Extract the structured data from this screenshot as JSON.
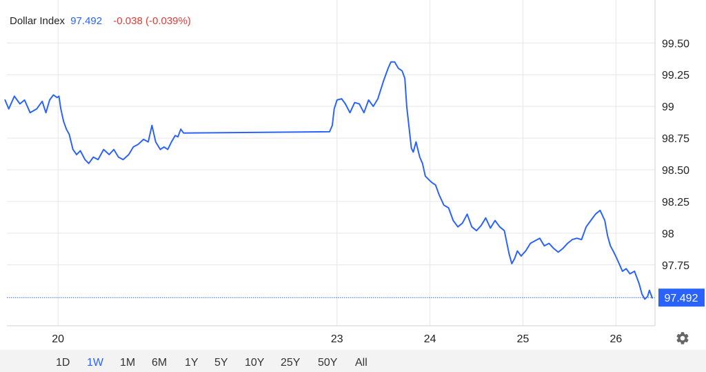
{
  "header": {
    "name": "Dollar Index",
    "last": "97.492",
    "change": "-0.038 (-0.039%)"
  },
  "colors": {
    "line": "#2962ff",
    "change_negative": "#e53935",
    "grid": "#e6e6e6"
  },
  "ranges": {
    "items": [
      "1D",
      "1W",
      "1M",
      "6M",
      "1Y",
      "5Y",
      "10Y",
      "25Y",
      "50Y",
      "All"
    ],
    "active": "1W"
  },
  "settings_icon": "gear-icon",
  "chart_data": {
    "type": "line",
    "series": [
      {
        "points": [
          [
            19.43,
            99.05
          ],
          [
            19.47,
            98.98
          ],
          [
            19.53,
            99.08
          ],
          [
            19.59,
            99.02
          ],
          [
            19.64,
            99.05
          ],
          [
            19.7,
            98.95
          ],
          [
            19.77,
            98.98
          ],
          [
            19.83,
            99.04
          ],
          [
            19.87,
            98.95
          ],
          [
            19.91,
            99.05
          ],
          [
            19.95,
            99.09
          ],
          [
            19.99,
            99.07
          ],
          [
            20.01,
            99.08
          ],
          [
            20.03,
            98.98
          ],
          [
            20.06,
            98.88
          ],
          [
            20.09,
            98.82
          ],
          [
            20.12,
            98.78
          ],
          [
            20.16,
            98.66
          ],
          [
            20.2,
            98.62
          ],
          [
            20.24,
            98.65
          ],
          [
            20.29,
            98.58
          ],
          [
            20.33,
            98.55
          ],
          [
            20.38,
            98.6
          ],
          [
            20.43,
            98.58
          ],
          [
            20.49,
            98.66
          ],
          [
            20.55,
            98.62
          ],
          [
            20.6,
            98.66
          ],
          [
            20.65,
            98.6
          ],
          [
            20.7,
            98.58
          ],
          [
            20.76,
            98.62
          ],
          [
            20.81,
            98.68
          ],
          [
            20.86,
            98.7
          ],
          [
            20.92,
            98.74
          ],
          [
            20.97,
            98.72
          ],
          [
            21.01,
            98.85
          ],
          [
            21.05,
            98.72
          ],
          [
            21.1,
            98.66
          ],
          [
            21.14,
            98.68
          ],
          [
            21.18,
            98.66
          ],
          [
            21.22,
            98.72
          ],
          [
            21.26,
            98.77
          ],
          [
            21.29,
            98.76
          ],
          [
            21.32,
            98.82
          ],
          [
            21.35,
            98.79
          ],
          [
            22.92,
            98.8
          ],
          [
            22.95,
            98.85
          ],
          [
            22.97,
            98.98
          ],
          [
            23.0,
            99.05
          ],
          [
            23.05,
            99.06
          ],
          [
            23.09,
            99.02
          ],
          [
            23.14,
            98.95
          ],
          [
            23.19,
            99.03
          ],
          [
            23.24,
            99.02
          ],
          [
            23.29,
            98.95
          ],
          [
            23.34,
            99.05
          ],
          [
            23.39,
            99.0
          ],
          [
            23.44,
            99.06
          ],
          [
            23.5,
            99.2
          ],
          [
            23.55,
            99.3
          ],
          [
            23.58,
            99.35
          ],
          [
            23.62,
            99.35
          ],
          [
            23.66,
            99.3
          ],
          [
            23.7,
            99.28
          ],
          [
            23.73,
            99.22
          ],
          [
            23.75,
            99.0
          ],
          [
            23.78,
            98.8
          ],
          [
            23.8,
            98.67
          ],
          [
            23.82,
            98.64
          ],
          [
            23.85,
            98.72
          ],
          [
            23.89,
            98.6
          ],
          [
            23.92,
            98.55
          ],
          [
            23.95,
            98.45
          ],
          [
            23.99,
            98.42
          ],
          [
            24.02,
            98.4
          ],
          [
            24.06,
            98.38
          ],
          [
            24.1,
            98.3
          ],
          [
            24.15,
            98.22
          ],
          [
            24.2,
            98.2
          ],
          [
            24.25,
            98.1
          ],
          [
            24.3,
            98.05
          ],
          [
            24.35,
            98.08
          ],
          [
            24.4,
            98.15
          ],
          [
            24.45,
            98.05
          ],
          [
            24.5,
            98.02
          ],
          [
            24.55,
            98.06
          ],
          [
            24.6,
            98.12
          ],
          [
            24.65,
            98.04
          ],
          [
            24.7,
            98.1
          ],
          [
            24.75,
            98.05
          ],
          [
            24.8,
            98.02
          ],
          [
            24.85,
            97.84
          ],
          [
            24.88,
            97.76
          ],
          [
            24.91,
            97.8
          ],
          [
            24.94,
            97.86
          ],
          [
            24.98,
            97.82
          ],
          [
            25.03,
            97.86
          ],
          [
            25.08,
            97.92
          ],
          [
            25.13,
            97.94
          ],
          [
            25.18,
            97.96
          ],
          [
            25.23,
            97.9
          ],
          [
            25.28,
            97.92
          ],
          [
            25.33,
            97.88
          ],
          [
            25.38,
            97.85
          ],
          [
            25.43,
            97.88
          ],
          [
            25.48,
            97.92
          ],
          [
            25.53,
            97.95
          ],
          [
            25.58,
            97.96
          ],
          [
            25.63,
            97.95
          ],
          [
            25.68,
            98.05
          ],
          [
            25.73,
            98.1
          ],
          [
            25.78,
            98.15
          ],
          [
            25.83,
            98.18
          ],
          [
            25.88,
            98.1
          ],
          [
            25.91,
            97.98
          ],
          [
            25.94,
            97.9
          ],
          [
            25.97,
            97.86
          ],
          [
            26.01,
            97.8
          ],
          [
            26.04,
            97.75
          ],
          [
            26.07,
            97.7
          ],
          [
            26.11,
            97.72
          ],
          [
            26.15,
            97.68
          ],
          [
            26.2,
            97.7
          ],
          [
            26.25,
            97.6
          ],
          [
            26.28,
            97.52
          ],
          [
            26.31,
            97.48
          ],
          [
            26.34,
            97.5
          ],
          [
            26.36,
            97.55
          ],
          [
            26.39,
            97.49
          ]
        ]
      }
    ],
    "y_axis": {
      "ticks": [
        "99.50",
        "99.25",
        "99",
        "98.75",
        "98.50",
        "98.25",
        "98",
        "97.75"
      ],
      "tick_values": [
        99.5,
        99.25,
        99.0,
        98.75,
        98.5,
        98.25,
        98.0,
        97.75
      ],
      "range": [
        97.27,
        99.73
      ]
    },
    "x_axis": {
      "ticks": [
        "20",
        "23",
        "24",
        "25",
        "26"
      ],
      "tick_values": [
        20,
        23,
        24,
        25,
        26
      ],
      "range": [
        19.45,
        26.42
      ]
    },
    "last_value": 97.492,
    "last_label": "97.492",
    "grid": true
  }
}
